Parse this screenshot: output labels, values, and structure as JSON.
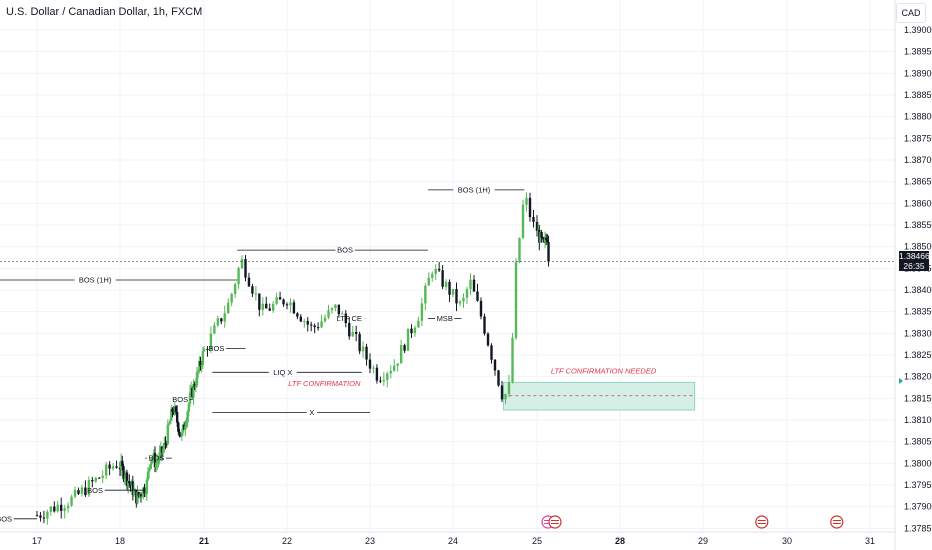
{
  "header": {
    "title": "U.S. Dollar / Canadian Dollar, 1h, FXCM",
    "currency": "CAD"
  },
  "price": {
    "current": "1.38466",
    "countdown": "26:35"
  },
  "chart_data": {
    "type": "candlestick",
    "ylim": [
      1.37855,
      1.39045
    ],
    "yticks": [
      "1.39000",
      "1.38950",
      "1.38900",
      "1.38850",
      "1.38800",
      "1.38750",
      "1.38700",
      "1.38650",
      "1.38600",
      "1.38550",
      "1.38500",
      "1.38450",
      "1.38400",
      "1.38350",
      "1.38300",
      "1.38250",
      "1.38200",
      "1.38150",
      "1.38100",
      "1.38050",
      "1.38000",
      "1.37950",
      "1.37900",
      "1.37850"
    ],
    "xticks": [
      {
        "label": "17",
        "day": 17,
        "bold": false
      },
      {
        "label": "18",
        "day": 18,
        "bold": false
      },
      {
        "label": "21",
        "day": 21,
        "bold": true
      },
      {
        "label": "22",
        "day": 22,
        "bold": false
      },
      {
        "label": "23",
        "day": 23,
        "bold": false
      },
      {
        "label": "24",
        "day": 24,
        "bold": false
      },
      {
        "label": "25",
        "day": 25,
        "bold": false
      },
      {
        "label": "28",
        "day": 28,
        "bold": true
      },
      {
        "label": "29",
        "day": 29,
        "bold": false
      },
      {
        "label": "30",
        "day": 30,
        "bold": false
      },
      {
        "label": "31",
        "day": 31,
        "bold": false
      }
    ],
    "anchors": [
      {
        "day": 17,
        "close": 1.3788
      },
      {
        "day": 17.45,
        "close": 1.3792
      },
      {
        "day": 17.95,
        "close": 1.38
      },
      {
        "day": 18.3,
        "close": 1.3796
      },
      {
        "day": 18.6,
        "close": 1.3792
      },
      {
        "day": 18.95,
        "close": 1.3795
      },
      {
        "day": 19.1,
        "close": 1.3802
      },
      {
        "day": 19.3,
        "close": 1.38
      },
      {
        "day": 19.6,
        "close": 1.3804
      },
      {
        "day": 19.9,
        "close": 1.3813
      },
      {
        "day": 20.2,
        "close": 1.3806
      },
      {
        "day": 20.5,
        "close": 1.3815
      },
      {
        "day": 20.75,
        "close": 1.382
      },
      {
        "day": 21.0,
        "close": 1.3826
      },
      {
        "day": 21.3,
        "close": 1.3837
      },
      {
        "day": 21.45,
        "close": 1.3847
      },
      {
        "day": 21.7,
        "close": 1.3835
      },
      {
        "day": 22.0,
        "close": 1.3838
      },
      {
        "day": 22.3,
        "close": 1.3831
      },
      {
        "day": 22.6,
        "close": 1.3836
      },
      {
        "day": 22.9,
        "close": 1.3826
      },
      {
        "day": 23.1,
        "close": 1.382
      },
      {
        "day": 23.3,
        "close": 1.3823
      },
      {
        "day": 23.6,
        "close": 1.3835
      },
      {
        "day": 23.75,
        "close": 1.3845
      },
      {
        "day": 23.95,
        "close": 1.384
      },
      {
        "day": 24.1,
        "close": 1.3836
      },
      {
        "day": 24.2,
        "close": 1.3842
      },
      {
        "day": 24.35,
        "close": 1.3833
      },
      {
        "day": 24.5,
        "close": 1.3822
      },
      {
        "day": 24.6,
        "close": 1.3815
      },
      {
        "day": 24.68,
        "close": 1.3818
      },
      {
        "day": 24.75,
        "close": 1.3845
      },
      {
        "day": 24.85,
        "close": 1.3862
      },
      {
        "day": 24.95,
        "close": 1.3855
      },
      {
        "day": 25.1,
        "close": 1.3852
      },
      {
        "day": 25.25,
        "close": 1.385
      },
      {
        "day": 25.4,
        "close": 1.3853
      },
      {
        "day": 25.45,
        "close": 1.38466
      }
    ],
    "annotations": [
      {
        "text": "BOS (1H)",
        "day1": 16.55,
        "day2": 21.4,
        "price": 1.38423,
        "label_day": 17.7
      },
      {
        "text": "BOS",
        "day1": 21.4,
        "day2": 23.7,
        "price": 1.38492,
        "label_day": 22.7
      },
      {
        "text": "BOS (1H)",
        "day1": 23.7,
        "day2": 24.85,
        "price": 1.38631,
        "label_day": 24.25
      },
      {
        "text": "MSB",
        "day1": 23.7,
        "day2": 24.1,
        "price": 1.38334,
        "label_day": 23.9
      },
      {
        "text": "LIQ X",
        "day1": 21.1,
        "day2": 22.9,
        "price": 1.3821,
        "label_day": 21.95
      },
      {
        "text": "X",
        "day1": 21.1,
        "day2": 23.0,
        "price": 1.38117,
        "label_day": 22.3
      },
      {
        "text": "BOS",
        "day1": 20.0,
        "day2": 20.6,
        "price": 1.38147,
        "label_day": 20.15
      },
      {
        "text": "BOS",
        "day1": 18.9,
        "day2": 19.85,
        "price": 1.38012,
        "label_day": 19.3
      },
      {
        "text": "BOS",
        "day1": 17.65,
        "day2": 18.9,
        "price": 1.37938,
        "label_day": 17.7
      },
      {
        "text": "BOS",
        "day1": 16.55,
        "day2": 17.0,
        "price": 1.37872,
        "label_day": 16.6
      },
      {
        "text": "BOS",
        "day1": 21.1,
        "day2": 21.5,
        "price": 1.38265,
        "label_day": 21.15
      },
      {
        "text": "LTF CE",
        "day1": 22.65,
        "day2": 22.95,
        "price": 1.38334,
        "label_day": 22.75
      }
    ],
    "confirmation_labels": [
      {
        "text": "LTF CONFIRMATION",
        "day": 22.45,
        "price": 1.38178
      },
      {
        "text": "LTF CONFIRMATION NEEDED",
        "day": 25.5,
        "price": 1.38207
      }
    ],
    "zone": {
      "day1": 24.6,
      "day2": 28.9,
      "top": 1.38187,
      "bottom": 1.38123,
      "mid": 1.38156
    },
    "colors": {
      "up": "#57b857",
      "down": "#131722",
      "zone_fill": "#d4efe6",
      "zone_border": "#7fcfb8",
      "conf": "#e0344b",
      "grid": "#f0f3fa"
    }
  }
}
